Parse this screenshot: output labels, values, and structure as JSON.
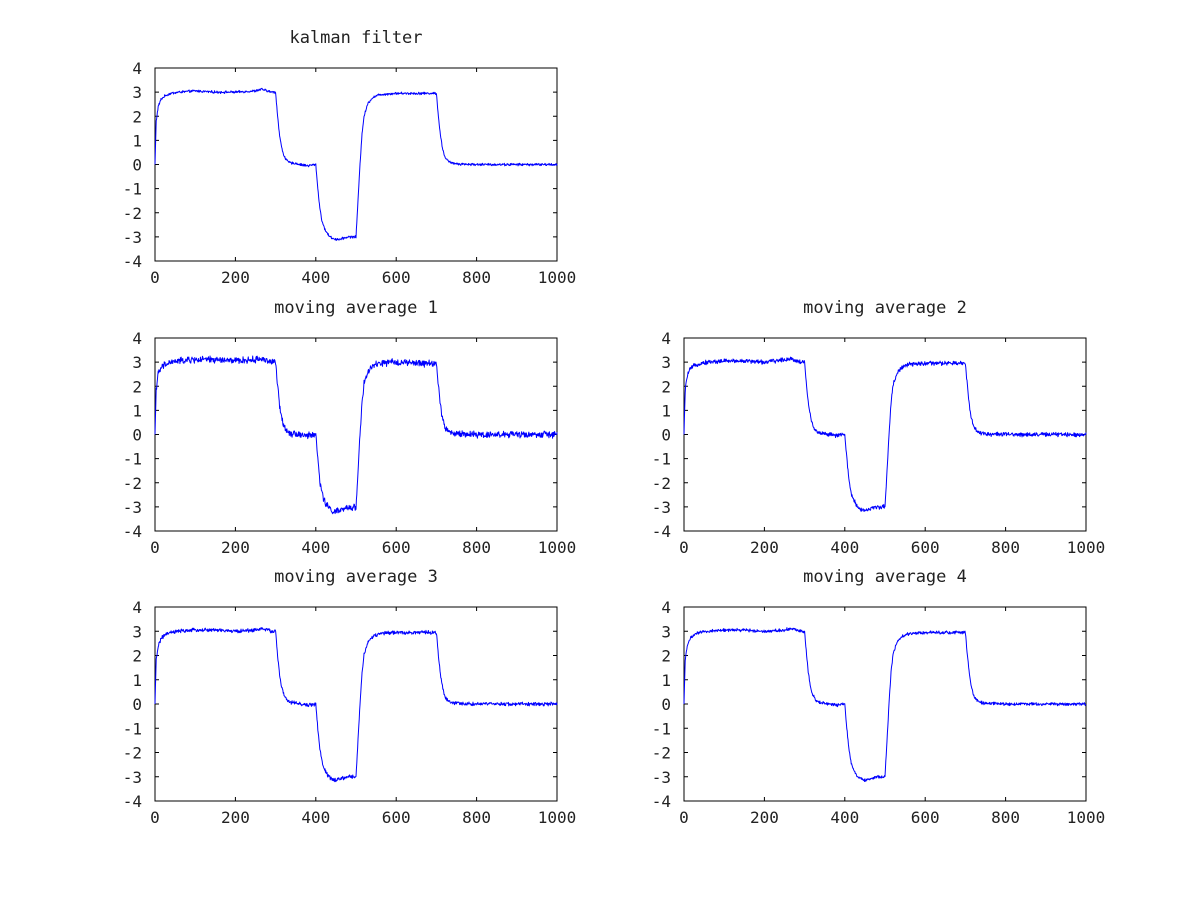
{
  "figure": {
    "background": "#ffffff",
    "line_color": "#0000ff"
  },
  "chart_data": [
    {
      "type": "line",
      "title": "kalman filter",
      "xlim": [
        0,
        1000
      ],
      "ylim": [
        -4,
        4
      ],
      "xticks": [
        0,
        200,
        400,
        600,
        800,
        1000
      ],
      "yticks": [
        4,
        3,
        2,
        1,
        0,
        -1,
        -2,
        -3,
        -4
      ],
      "grid": false,
      "series": [
        {
          "color": "#0000ff",
          "noise": 0.04,
          "x": [
            0,
            3,
            8,
            15,
            25,
            40,
            60,
            100,
            150,
            200,
            250,
            265,
            290,
            300,
            305,
            310,
            315,
            320,
            325,
            330,
            340,
            350,
            360,
            380,
            400,
            405,
            410,
            415,
            420,
            430,
            440,
            450,
            460,
            480,
            500,
            505,
            510,
            515,
            520,
            530,
            540,
            550,
            560,
            600,
            650,
            700,
            705,
            710,
            715,
            720,
            730,
            740,
            760,
            800,
            900,
            1000
          ],
          "y": [
            0.0,
            1.8,
            2.4,
            2.7,
            2.85,
            2.95,
            3.0,
            3.05,
            3.0,
            3.0,
            3.05,
            3.12,
            3.0,
            3.0,
            2.0,
            1.2,
            0.7,
            0.4,
            0.25,
            0.12,
            0.05,
            0.05,
            0.0,
            -0.05,
            0.0,
            -1.0,
            -1.8,
            -2.3,
            -2.6,
            -2.9,
            -3.05,
            -3.1,
            -3.1,
            -3.0,
            -3.0,
            -1.5,
            0.0,
            1.3,
            2.0,
            2.55,
            2.75,
            2.85,
            2.9,
            2.95,
            2.95,
            2.95,
            2.0,
            1.2,
            0.7,
            0.35,
            0.12,
            0.05,
            0.02,
            0.0,
            0.0,
            0.0
          ]
        }
      ]
    },
    {
      "type": "line",
      "title": "moving average 1",
      "xlim": [
        0,
        1000
      ],
      "ylim": [
        -4,
        4
      ],
      "xticks": [
        0,
        200,
        400,
        600,
        800,
        1000
      ],
      "yticks": [
        4,
        3,
        2,
        1,
        0,
        -1,
        -2,
        -3,
        -4
      ],
      "grid": false,
      "series": [
        {
          "color": "#0000ff",
          "noise": 0.11,
          "x": [
            0,
            3,
            8,
            15,
            25,
            40,
            60,
            100,
            150,
            200,
            250,
            265,
            290,
            300,
            305,
            310,
            315,
            320,
            325,
            330,
            340,
            350,
            360,
            380,
            400,
            405,
            410,
            415,
            420,
            430,
            440,
            450,
            460,
            480,
            500,
            505,
            510,
            515,
            520,
            530,
            540,
            550,
            560,
            600,
            650,
            700,
            705,
            710,
            715,
            720,
            730,
            740,
            760,
            800,
            900,
            1000
          ],
          "y": [
            0.0,
            1.9,
            2.5,
            2.75,
            2.9,
            3.0,
            3.05,
            3.1,
            3.1,
            3.05,
            3.1,
            3.15,
            3.0,
            3.0,
            2.0,
            1.2,
            0.7,
            0.4,
            0.25,
            0.12,
            0.05,
            0.05,
            0.0,
            -0.05,
            0.0,
            -1.0,
            -1.9,
            -2.4,
            -2.7,
            -3.0,
            -3.15,
            -3.2,
            -3.15,
            -3.05,
            -3.0,
            -1.5,
            0.0,
            1.3,
            2.1,
            2.6,
            2.8,
            2.9,
            2.95,
            3.0,
            2.95,
            2.95,
            2.0,
            1.2,
            0.7,
            0.35,
            0.12,
            0.05,
            0.02,
            0.0,
            0.0,
            0.0
          ]
        }
      ]
    },
    {
      "type": "line",
      "title": "moving average 2",
      "xlim": [
        0,
        1000
      ],
      "ylim": [
        -4,
        4
      ],
      "xticks": [
        0,
        200,
        400,
        600,
        800,
        1000
      ],
      "yticks": [
        4,
        3,
        2,
        1,
        0,
        -1,
        -2,
        -3,
        -4
      ],
      "grid": false,
      "series": [
        {
          "color": "#0000ff",
          "noise": 0.07,
          "x": [
            0,
            3,
            8,
            15,
            25,
            40,
            60,
            100,
            150,
            200,
            250,
            265,
            290,
            300,
            305,
            310,
            315,
            320,
            325,
            330,
            340,
            350,
            360,
            380,
            400,
            405,
            410,
            415,
            420,
            430,
            440,
            450,
            460,
            480,
            500,
            505,
            510,
            515,
            520,
            530,
            540,
            550,
            560,
            600,
            650,
            700,
            705,
            710,
            715,
            720,
            730,
            740,
            760,
            800,
            900,
            1000
          ],
          "y": [
            0.0,
            1.8,
            2.45,
            2.7,
            2.85,
            2.95,
            3.0,
            3.05,
            3.05,
            3.0,
            3.1,
            3.15,
            3.0,
            3.0,
            2.0,
            1.2,
            0.7,
            0.4,
            0.25,
            0.12,
            0.05,
            0.05,
            0.0,
            -0.05,
            0.0,
            -1.0,
            -1.85,
            -2.35,
            -2.65,
            -2.95,
            -3.1,
            -3.15,
            -3.1,
            -3.0,
            -3.0,
            -1.5,
            0.0,
            1.3,
            2.05,
            2.55,
            2.75,
            2.85,
            2.9,
            2.95,
            2.95,
            2.95,
            2.0,
            1.2,
            0.7,
            0.35,
            0.12,
            0.05,
            0.02,
            0.0,
            0.0,
            0.0
          ]
        }
      ]
    },
    {
      "type": "line",
      "title": "moving average 3",
      "xlim": [
        0,
        1000
      ],
      "ylim": [
        -4,
        4
      ],
      "xticks": [
        0,
        200,
        400,
        600,
        800,
        1000
      ],
      "yticks": [
        4,
        3,
        2,
        1,
        0,
        -1,
        -2,
        -3,
        -4
      ],
      "grid": false,
      "series": [
        {
          "color": "#0000ff",
          "noise": 0.06,
          "x": [
            0,
            3,
            8,
            15,
            25,
            40,
            60,
            100,
            150,
            200,
            250,
            265,
            290,
            300,
            305,
            310,
            315,
            320,
            325,
            330,
            340,
            350,
            360,
            380,
            400,
            405,
            410,
            415,
            420,
            430,
            440,
            450,
            460,
            480,
            500,
            505,
            510,
            515,
            520,
            530,
            540,
            550,
            560,
            600,
            650,
            700,
            705,
            710,
            715,
            720,
            730,
            740,
            760,
            800,
            900,
            1000
          ],
          "y": [
            0.0,
            1.8,
            2.4,
            2.7,
            2.85,
            2.95,
            3.0,
            3.05,
            3.05,
            3.0,
            3.05,
            3.12,
            3.0,
            3.0,
            2.0,
            1.2,
            0.7,
            0.4,
            0.25,
            0.12,
            0.05,
            0.05,
            0.0,
            -0.05,
            0.0,
            -1.0,
            -1.85,
            -2.35,
            -2.65,
            -2.95,
            -3.1,
            -3.15,
            -3.1,
            -3.0,
            -3.0,
            -1.5,
            0.0,
            1.3,
            2.05,
            2.55,
            2.75,
            2.85,
            2.9,
            2.95,
            2.95,
            2.95,
            2.0,
            1.2,
            0.7,
            0.35,
            0.12,
            0.05,
            0.02,
            0.0,
            0.0,
            0.0
          ]
        }
      ]
    },
    {
      "type": "line",
      "title": "moving average 4",
      "xlim": [
        0,
        1000
      ],
      "ylim": [
        -4,
        4
      ],
      "xticks": [
        0,
        200,
        400,
        600,
        800,
        1000
      ],
      "yticks": [
        4,
        3,
        2,
        1,
        0,
        -1,
        -2,
        -3,
        -4
      ],
      "grid": false,
      "series": [
        {
          "color": "#0000ff",
          "noise": 0.05,
          "x": [
            0,
            3,
            8,
            15,
            25,
            40,
            60,
            100,
            150,
            200,
            250,
            265,
            290,
            300,
            305,
            310,
            315,
            320,
            325,
            330,
            340,
            350,
            360,
            380,
            400,
            405,
            410,
            415,
            420,
            430,
            440,
            450,
            460,
            480,
            500,
            505,
            510,
            515,
            520,
            530,
            540,
            550,
            560,
            600,
            650,
            700,
            705,
            710,
            715,
            720,
            730,
            740,
            760,
            800,
            900,
            1000
          ],
          "y": [
            0.0,
            1.8,
            2.4,
            2.7,
            2.85,
            2.95,
            3.0,
            3.05,
            3.05,
            3.0,
            3.05,
            3.12,
            3.0,
            3.0,
            2.0,
            1.2,
            0.7,
            0.4,
            0.25,
            0.12,
            0.05,
            0.05,
            0.0,
            -0.05,
            0.0,
            -1.0,
            -1.85,
            -2.35,
            -2.65,
            -2.95,
            -3.1,
            -3.15,
            -3.1,
            -3.0,
            -3.0,
            -1.5,
            0.0,
            1.3,
            2.05,
            2.55,
            2.75,
            2.85,
            2.9,
            2.95,
            2.95,
            2.95,
            2.0,
            1.2,
            0.7,
            0.35,
            0.12,
            0.05,
            0.02,
            0.0,
            0.0,
            0.0
          ]
        }
      ]
    }
  ]
}
